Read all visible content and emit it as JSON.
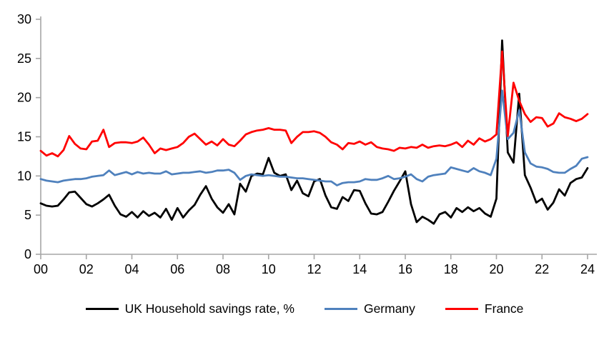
{
  "chart_data": {
    "type": "line",
    "title": "",
    "xlabel": "",
    "ylabel": "",
    "x_unit": "year, quarterly observations starting 2000Q1",
    "x_tick_labels": [
      "00",
      "02",
      "04",
      "06",
      "08",
      "10",
      "12",
      "14",
      "16",
      "18",
      "20",
      "22",
      "24"
    ],
    "y_ticks": [
      0,
      5,
      10,
      15,
      20,
      25,
      30
    ],
    "ylim": [
      0,
      30
    ],
    "x_range_years": [
      2000,
      2024.25
    ],
    "grid": false,
    "legend_position": "bottom",
    "axis_color": "#a6a6a6",
    "tick_label_color": "#000000",
    "series": [
      {
        "name": "UK Household savings rate, %",
        "color": "#000000",
        "start": "2000Q1",
        "frequency": "quarterly",
        "values": [
          6.5,
          6.2,
          6.1,
          6.2,
          7.0,
          7.9,
          8.0,
          7.2,
          6.4,
          6.1,
          6.5,
          7.0,
          7.6,
          6.2,
          5.1,
          4.8,
          5.4,
          4.7,
          5.5,
          4.9,
          5.3,
          4.7,
          5.8,
          4.4,
          5.9,
          4.7,
          5.6,
          6.3,
          7.6,
          8.7,
          7.1,
          6.0,
          5.3,
          6.4,
          5.1,
          9.0,
          8.0,
          10.0,
          10.3,
          10.2,
          12.3,
          10.4,
          10.0,
          10.2,
          8.2,
          9.4,
          7.8,
          7.4,
          9.3,
          9.6,
          7.5,
          6.0,
          5.8,
          7.3,
          6.8,
          8.2,
          8.1,
          6.5,
          5.2,
          5.1,
          5.4,
          6.7,
          8.1,
          9.3,
          10.6,
          6.4,
          4.1,
          4.8,
          4.4,
          3.9,
          5.1,
          5.4,
          4.7,
          5.9,
          5.4,
          6.0,
          5.5,
          5.9,
          5.2,
          4.8,
          7.1,
          27.3,
          13.0,
          11.7,
          20.5,
          10.1,
          8.5,
          6.6,
          7.1,
          5.7,
          6.6,
          8.3,
          7.5,
          9.1,
          9.6,
          9.8,
          11.0
        ]
      },
      {
        "name": "Germany",
        "color": "#4f81bd",
        "start": "2000Q1",
        "frequency": "quarterly",
        "values": [
          9.6,
          9.4,
          9.3,
          9.2,
          9.4,
          9.5,
          9.6,
          9.6,
          9.7,
          9.9,
          10.0,
          10.1,
          10.7,
          10.1,
          10.3,
          10.5,
          10.2,
          10.5,
          10.3,
          10.4,
          10.3,
          10.3,
          10.6,
          10.2,
          10.3,
          10.4,
          10.4,
          10.5,
          10.6,
          10.4,
          10.5,
          10.7,
          10.7,
          10.8,
          10.4,
          9.5,
          10.0,
          10.2,
          10.1,
          10.0,
          10.1,
          10.0,
          9.9,
          9.9,
          9.8,
          9.7,
          9.7,
          9.6,
          9.5,
          9.4,
          9.3,
          9.3,
          8.8,
          9.1,
          9.2,
          9.2,
          9.3,
          9.6,
          9.5,
          9.5,
          9.7,
          10.0,
          9.6,
          9.7,
          9.9,
          10.2,
          9.6,
          9.3,
          9.9,
          10.1,
          10.2,
          10.3,
          11.1,
          10.9,
          10.7,
          10.5,
          11.0,
          10.6,
          10.4,
          10.1,
          12.2,
          20.9,
          14.7,
          15.5,
          18.4,
          13.0,
          11.6,
          11.2,
          11.1,
          10.9,
          10.5,
          10.4,
          10.4,
          10.9,
          11.3,
          12.2,
          12.4
        ]
      },
      {
        "name": "France",
        "color": "#ff0000",
        "start": "2000Q1",
        "frequency": "quarterly",
        "values": [
          13.2,
          12.6,
          12.9,
          12.5,
          13.3,
          15.1,
          14.1,
          13.5,
          13.4,
          14.4,
          14.5,
          15.9,
          13.7,
          14.2,
          14.3,
          14.3,
          14.2,
          14.4,
          14.9,
          14.0,
          12.9,
          13.5,
          13.3,
          13.5,
          13.7,
          14.2,
          15.0,
          15.4,
          14.7,
          14.0,
          14.4,
          13.9,
          14.7,
          14.0,
          13.8,
          14.5,
          15.3,
          15.6,
          15.8,
          15.9,
          16.1,
          15.9,
          15.9,
          15.8,
          14.2,
          15.0,
          15.6,
          15.6,
          15.7,
          15.5,
          15.0,
          14.3,
          14.0,
          13.4,
          14.2,
          14.1,
          14.4,
          14.0,
          14.3,
          13.7,
          13.5,
          13.4,
          13.2,
          13.6,
          13.5,
          13.7,
          13.6,
          14.0,
          13.6,
          13.8,
          13.9,
          13.8,
          14.0,
          14.3,
          13.7,
          14.5,
          14.0,
          14.8,
          14.4,
          14.7,
          15.3,
          25.9,
          15.1,
          21.9,
          19.6,
          17.9,
          16.9,
          17.5,
          17.4,
          16.3,
          16.7,
          18.0,
          17.5,
          17.3,
          17.0,
          17.3,
          17.9
        ]
      }
    ]
  },
  "legend": {
    "items": [
      {
        "label": "UK Household savings rate, %"
      },
      {
        "label": "Germany"
      },
      {
        "label": "France"
      }
    ]
  }
}
